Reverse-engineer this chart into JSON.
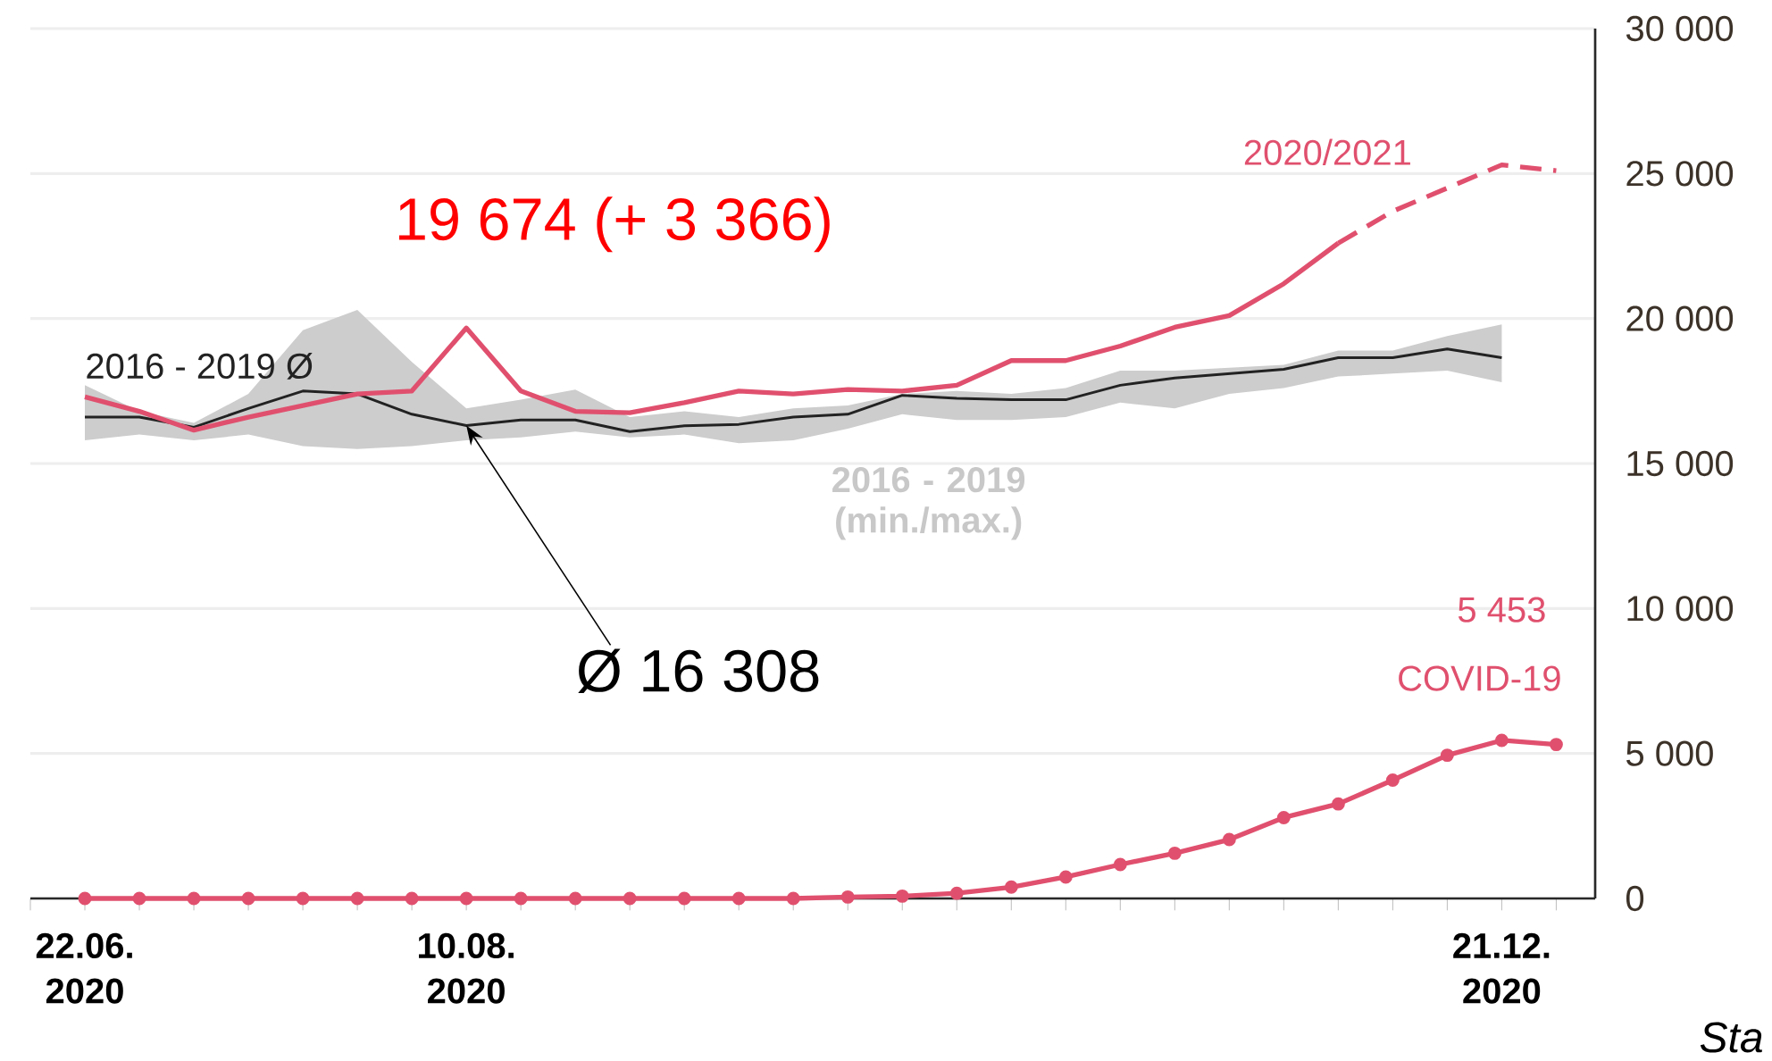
{
  "chart_data": {
    "type": "line",
    "xlim": [
      "2020-06-15",
      "2021-01-02"
    ],
    "ylim": [
      0,
      30000
    ],
    "xticks": [
      {
        "value": "2020-06-15",
        "label": null
      },
      {
        "value": "2020-06-22",
        "label": "22.06. 2020"
      },
      {
        "value": "2020-06-29",
        "label": null
      },
      {
        "value": "2020-07-06",
        "label": null
      },
      {
        "value": "2020-07-13",
        "label": null
      },
      {
        "value": "2020-07-20",
        "label": null
      },
      {
        "value": "2020-07-27",
        "label": null
      },
      {
        "value": "2020-08-03",
        "label": null
      },
      {
        "value": "2020-08-10",
        "label": "10.08. 2020"
      },
      {
        "value": "2020-08-17",
        "label": null
      },
      {
        "value": "2020-08-24",
        "label": null
      },
      {
        "value": "2020-08-31",
        "label": null
      },
      {
        "value": "2020-09-07",
        "label": null
      },
      {
        "value": "2020-09-14",
        "label": null
      },
      {
        "value": "2020-09-21",
        "label": null
      },
      {
        "value": "2020-09-28",
        "label": null
      },
      {
        "value": "2020-10-05",
        "label": null
      },
      {
        "value": "2020-10-12",
        "label": null
      },
      {
        "value": "2020-10-19",
        "label": null
      },
      {
        "value": "2020-10-26",
        "label": null
      },
      {
        "value": "2020-11-02",
        "label": null
      },
      {
        "value": "2020-11-09",
        "label": null
      },
      {
        "value": "2020-11-16",
        "label": null
      },
      {
        "value": "2020-11-23",
        "label": null
      },
      {
        "value": "2020-11-30",
        "label": null
      },
      {
        "value": "2020-12-07",
        "label": null
      },
      {
        "value": "2020-12-14",
        "label": null
      },
      {
        "value": "2020-12-21",
        "label": "21.12. 2020"
      },
      {
        "value": "2020-12-28",
        "label": null
      }
    ],
    "yticks": [
      {
        "value": 0,
        "label": "0"
      },
      {
        "value": 5000,
        "label": "5 000"
      },
      {
        "value": 10000,
        "label": "10 000"
      },
      {
        "value": 15000,
        "label": "15 000"
      },
      {
        "value": 20000,
        "label": "20 000"
      },
      {
        "value": 25000,
        "label": "25 000"
      },
      {
        "value": 30000,
        "label": "30 000"
      }
    ],
    "grid": "y",
    "series": [
      {
        "name": "2016 - 2019 Ø",
        "color": "#222222",
        "x": [
          "2020-06-22",
          "2020-06-29",
          "2020-07-06",
          "2020-07-13",
          "2020-07-20",
          "2020-07-27",
          "2020-08-03",
          "2020-08-10",
          "2020-08-17",
          "2020-08-24",
          "2020-08-31",
          "2020-09-07",
          "2020-09-14",
          "2020-09-21",
          "2020-09-28",
          "2020-10-05",
          "2020-10-12",
          "2020-10-19",
          "2020-10-26",
          "2020-11-02",
          "2020-11-09",
          "2020-11-16",
          "2020-11-23",
          "2020-11-30",
          "2020-12-07",
          "2020-12-14",
          "2020-12-21"
        ],
        "values": [
          16600,
          16600,
          16250,
          16900,
          17500,
          17400,
          16700,
          16308,
          16500,
          16500,
          16100,
          16300,
          16350,
          16600,
          16700,
          17350,
          17250,
          17200,
          17200,
          17700,
          17950,
          18100,
          18250,
          18650,
          18650,
          18950,
          18650
        ],
        "lower": [
          15800,
          16000,
          15800,
          16000,
          15600,
          15500,
          15600,
          15800,
          15900,
          16100,
          15900,
          16000,
          15700,
          15800,
          16200,
          16700,
          16500,
          16500,
          16600,
          17100,
          16900,
          17400,
          17600,
          18000,
          18100,
          18200,
          17800
        ],
        "upper": [
          17700,
          16800,
          16400,
          17400,
          19600,
          20300,
          18500,
          16900,
          17200,
          17550,
          16600,
          16800,
          16600,
          16900,
          17000,
          17400,
          17500,
          17400,
          17600,
          18200,
          18200,
          18300,
          18400,
          18900,
          18900,
          19400,
          19800
        ]
      },
      {
        "color": "#e0506e",
        "line_style": "solid",
        "x": [
          "2020-06-22",
          "2020-06-29",
          "2020-07-06",
          "2020-07-13",
          "2020-07-20",
          "2020-07-27",
          "2020-08-03",
          "2020-08-10",
          "2020-08-17",
          "2020-08-24",
          "2020-08-31",
          "2020-09-07",
          "2020-09-14",
          "2020-09-21",
          "2020-09-28",
          "2020-10-05",
          "2020-10-12",
          "2020-10-19",
          "2020-10-26",
          "2020-11-02",
          "2020-11-09",
          "2020-11-16",
          "2020-11-23",
          "2020-11-30"
        ],
        "values": [
          17300,
          16800,
          16150,
          16600,
          17000,
          17400,
          17500,
          19674,
          17500,
          16800,
          16750,
          17100,
          17500,
          17400,
          17550,
          17500,
          17700,
          18550,
          18550,
          19050,
          19700,
          20100,
          21200,
          22600
        ]
      },
      {
        "name": "2020/2021",
        "color": "#e0506e",
        "line_style": "dashed",
        "x": [
          "2020-11-30",
          "2020-12-07",
          "2020-12-14",
          "2020-12-21",
          "2020-12-28"
        ],
        "values": [
          22600,
          23700,
          24500,
          25300,
          25100
        ]
      },
      {
        "name": "COVID-19",
        "color": "#e0506e",
        "marker": "circle",
        "x": [
          "2020-06-22",
          "2020-06-29",
          "2020-07-06",
          "2020-07-13",
          "2020-07-20",
          "2020-07-27",
          "2020-08-03",
          "2020-08-10",
          "2020-08-17",
          "2020-08-24",
          "2020-08-31",
          "2020-09-07",
          "2020-09-14",
          "2020-09-21",
          "2020-09-28",
          "2020-10-05",
          "2020-10-12",
          "2020-10-19",
          "2020-10-26",
          "2020-11-02",
          "2020-11-09",
          "2020-11-16",
          "2020-11-23",
          "2020-11-30",
          "2020-12-07",
          "2020-12-14",
          "2020-12-21",
          "2020-12-28"
        ],
        "values": [
          0,
          0,
          0,
          0,
          0,
          0,
          0,
          0,
          0,
          0,
          0,
          0,
          0,
          0,
          50,
          80,
          180,
          390,
          740,
          1170,
          1560,
          2030,
          2790,
          3260,
          4080,
          4940,
          5453,
          5310
        ],
        "value_labels": [
          null,
          null,
          null,
          null,
          null,
          null,
          null,
          null,
          null,
          null,
          null,
          null,
          null,
          null,
          null,
          null,
          null,
          null,
          null,
          null,
          null,
          null,
          null,
          null,
          null,
          null,
          "5 453",
          null
        ]
      }
    ],
    "annotations": [
      {
        "text": "19 674 (+ 3 366)",
        "x": "2020-08-10",
        "y": 19674
      },
      {
        "text": "Ø 16 308",
        "x": "2020-08-10",
        "y": 16308
      },
      "2016 - 2019 (min./max.)",
      "Sta"
    ]
  }
}
